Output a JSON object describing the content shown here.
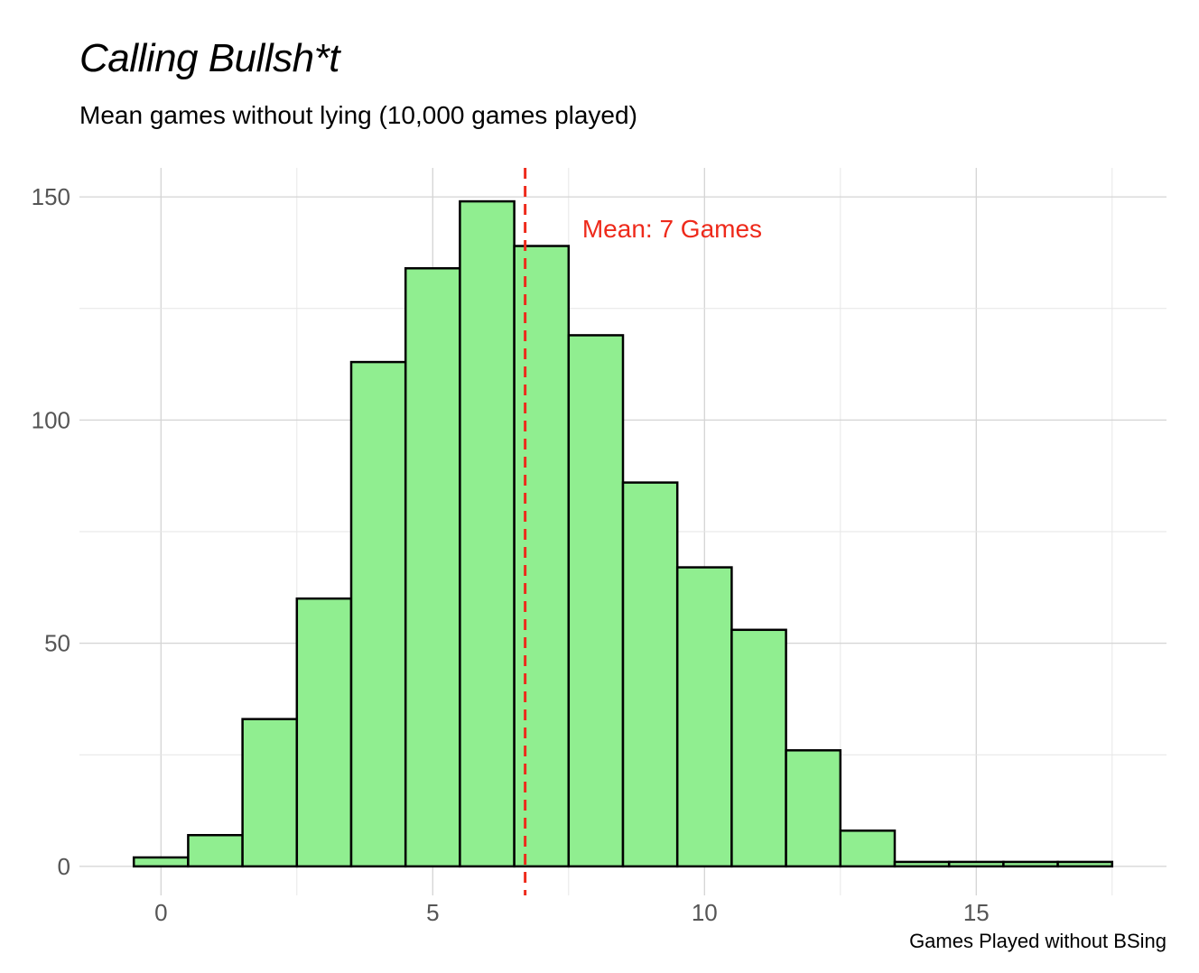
{
  "chart_data": {
    "type": "bar",
    "title": "Calling Bullsh*t",
    "subtitle": "Mean games without lying (10,000 games played)",
    "xlabel": "Games Played without BSing",
    "ylabel": "",
    "bins": [
      0,
      1,
      2,
      3,
      4,
      5,
      6,
      7,
      8,
      9,
      10,
      11,
      12,
      13,
      14,
      15,
      16,
      17
    ],
    "values": [
      2,
      7,
      33,
      60,
      113,
      134,
      149,
      139,
      119,
      86,
      67,
      53,
      26,
      8,
      1,
      1,
      1,
      1
    ],
    "bin_width": 1,
    "xlim": [
      -1.5,
      18.5
    ],
    "ylim": [
      -6.5,
      156.5
    ],
    "x_ticks": [
      0,
      5,
      10,
      15
    ],
    "y_ticks": [
      0,
      50,
      100,
      150
    ],
    "bar_fill": "#90ee90",
    "bar_stroke": "#000000",
    "grid": true,
    "mean_line": {
      "x": 6.7,
      "color": "#ee2a1b",
      "style": "dashed"
    },
    "annotation": {
      "text": "Mean: 7 Games",
      "x": 7.75,
      "y": 143,
      "color": "#ee2a1b"
    }
  }
}
